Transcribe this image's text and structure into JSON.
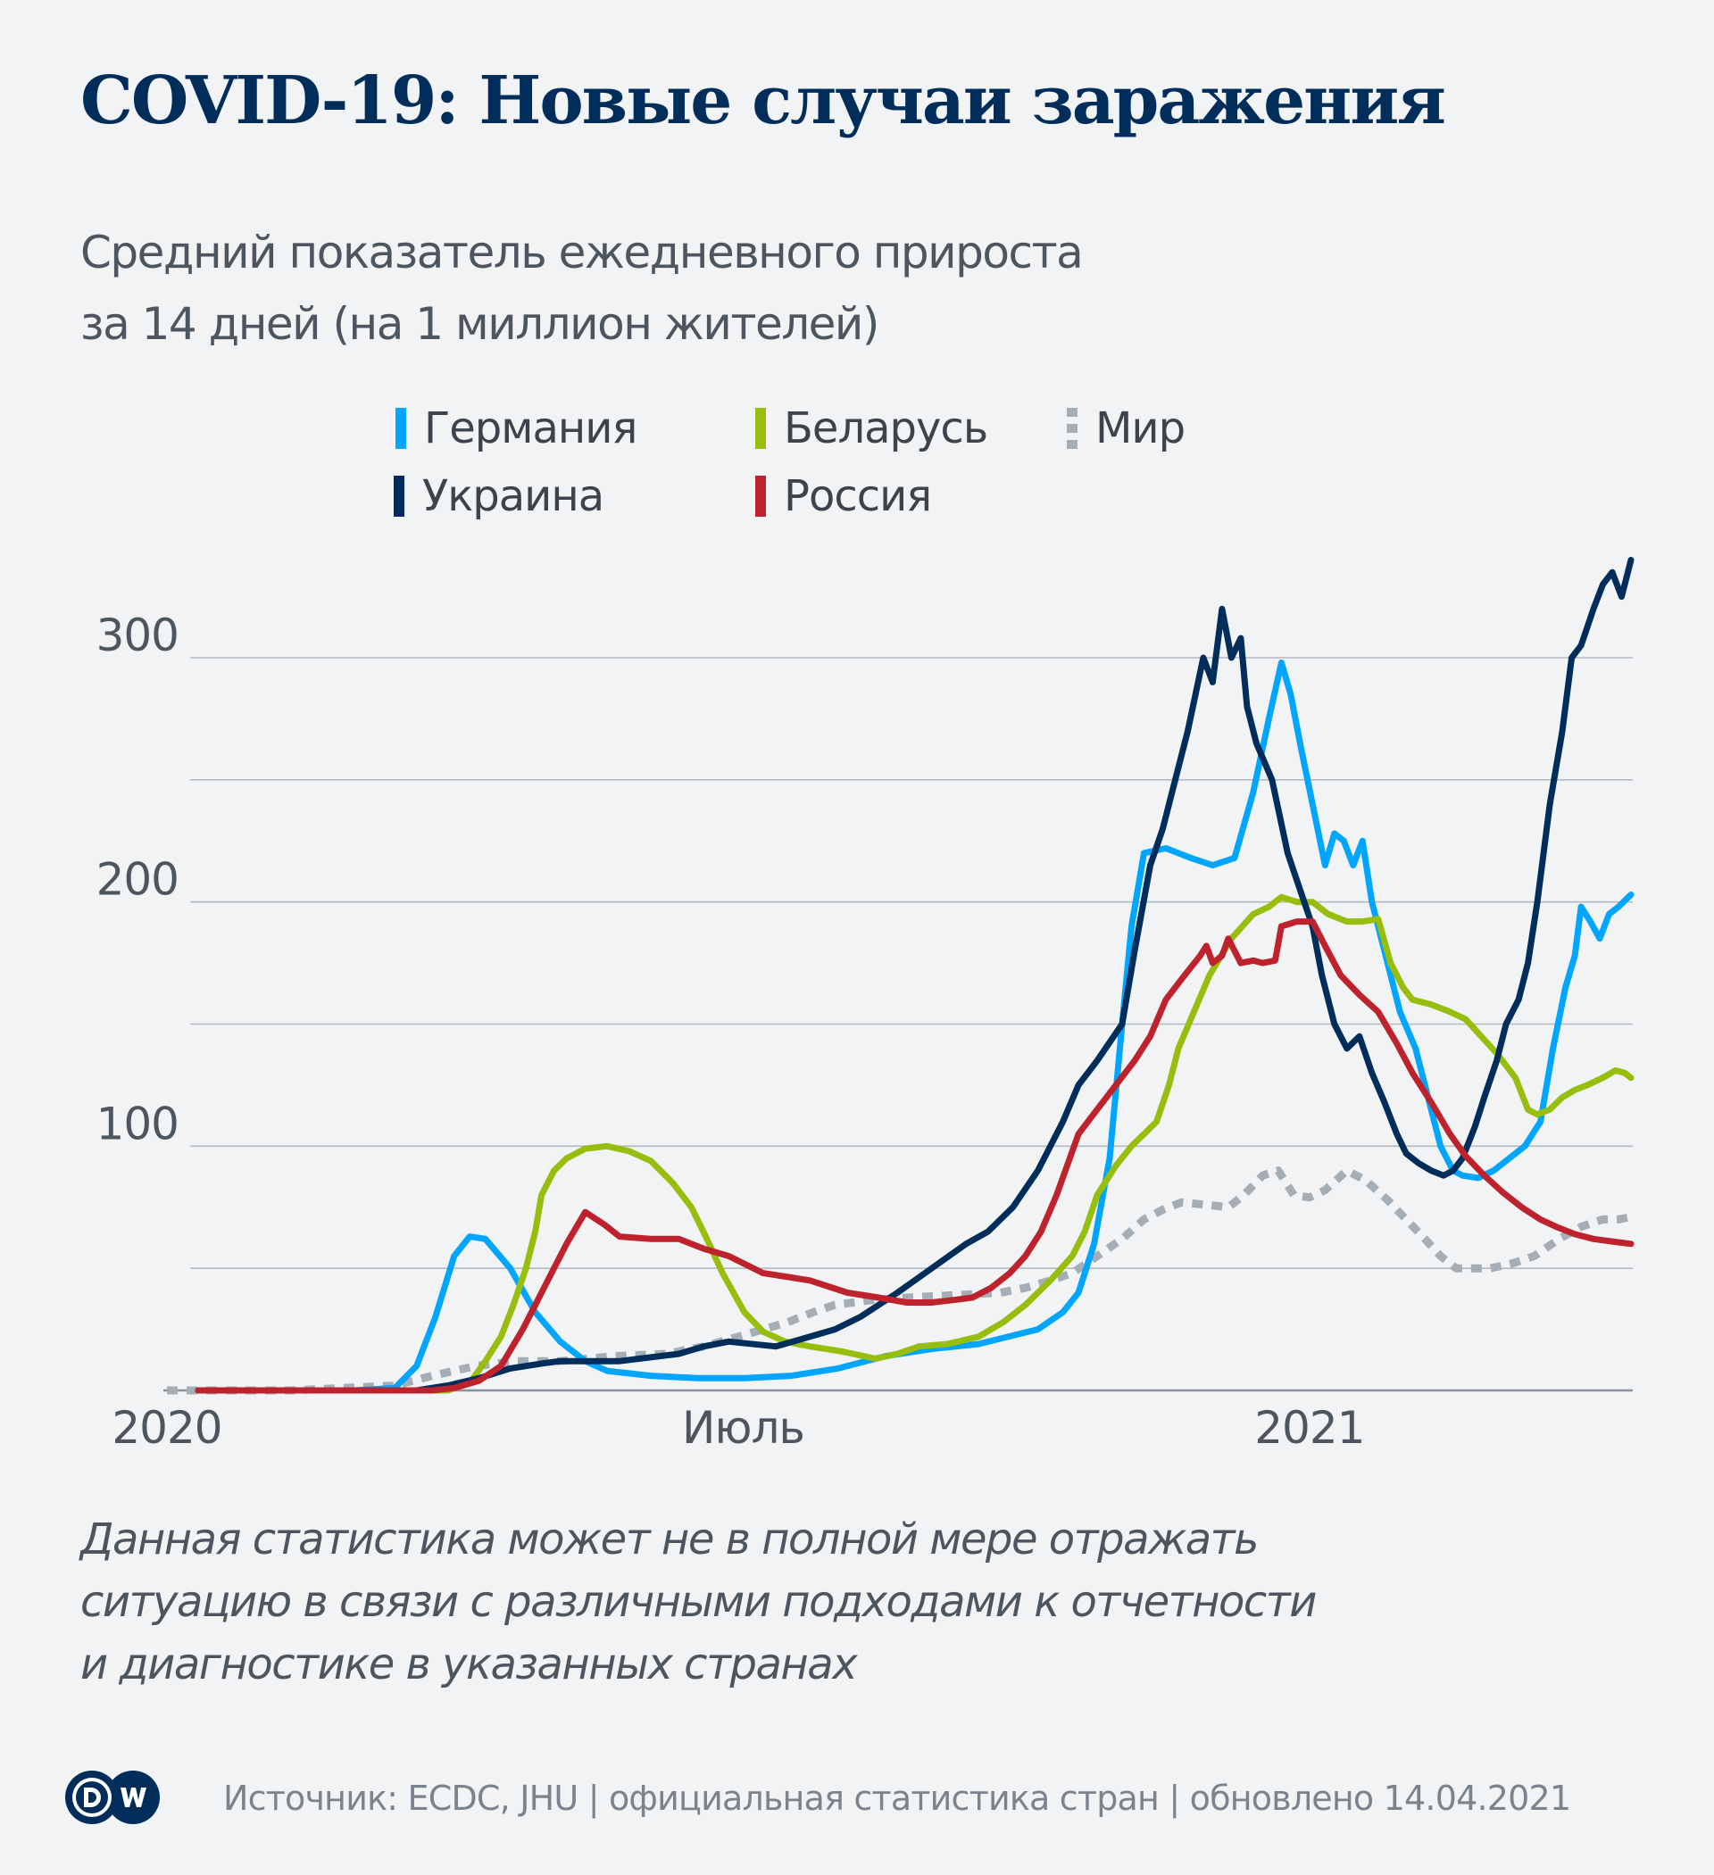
{
  "header": {
    "title": "COVID-19: Новые случаи заражения",
    "subtitle_line1": "Средний показатель ежедневного прироста",
    "subtitle_line2": "за 14 дней (на 1 миллион жителей)"
  },
  "legend": [
    {
      "label": "Германия",
      "color": "#00a5ff",
      "style": "solid"
    },
    {
      "label": "Беларусь",
      "color": "#97be0d",
      "style": "solid"
    },
    {
      "label": "Мир",
      "color": "#a5adb5",
      "style": "dotted"
    },
    {
      "label": "Украина",
      "color": "#002d5a",
      "style": "solid"
    },
    {
      "label": "Россия",
      "color": "#be232d",
      "style": "solid"
    }
  ],
  "chart_data": {
    "type": "line",
    "title": "COVID-19: Новые случаи заражения",
    "ylabel": "Средний показатель ежедневного прироста за 14 дней (на 1 миллион жителей)",
    "xlabel": "",
    "x_unit": "days since 2020-01-01",
    "xlim": [
      0,
      469
    ],
    "ylim": [
      0,
      300
    ],
    "y_ticks": [
      {
        "value": 100,
        "label": "100"
      },
      {
        "value": 200,
        "label": "200"
      },
      {
        "value": 300,
        "label": "300"
      }
    ],
    "y_gridlines": [
      0,
      50,
      100,
      150,
      200,
      250,
      300
    ],
    "x_ticks": [
      {
        "value": 0,
        "label": "2020"
      },
      {
        "value": 182,
        "label": "Июль"
      },
      {
        "value": 366,
        "label": "2021"
      }
    ],
    "grid": true,
    "legend_position": "top",
    "series": [
      {
        "name": "Германия",
        "color": "#00a5ff",
        "dash": false,
        "x": [
          10,
          60,
          73,
          80,
          86,
          92,
          97,
          102,
          110,
          118,
          126,
          134,
          141,
          155,
          170,
          185,
          200,
          215,
          230,
          245,
          260,
          279,
          287,
          292,
          297,
          302,
          306,
          309,
          313,
          320,
          328,
          335,
          342,
          348,
          353,
          357,
          360,
          363,
          367,
          371,
          374,
          377,
          380,
          383,
          386,
          390,
          395,
          400,
          404,
          408,
          412,
          415,
          420,
          425,
          430,
          435,
          440,
          444,
          448,
          451,
          453,
          456,
          459,
          462,
          465,
          469
        ],
        "y": [
          0,
          0,
          1,
          10,
          30,
          55,
          63,
          62,
          50,
          32,
          20,
          12,
          8,
          6,
          5,
          5,
          6,
          9,
          14,
          17,
          19,
          25,
          32,
          40,
          60,
          95,
          150,
          190,
          220,
          222,
          218,
          215,
          218,
          245,
          275,
          298,
          285,
          265,
          240,
          215,
          228,
          225,
          215,
          225,
          200,
          180,
          155,
          140,
          120,
          100,
          90,
          88,
          87,
          90,
          95,
          100,
          110,
          140,
          165,
          178,
          198,
          192,
          185,
          195,
          198,
          203
        ]
      },
      {
        "name": "Украина",
        "color": "#002d5a",
        "dash": false,
        "x": [
          10,
          80,
          90,
          100,
          110,
          120,
          126,
          145,
          164,
          172,
          180,
          195,
          206,
          214,
          222,
          234,
          245,
          256,
          263,
          271,
          279,
          287,
          292,
          298,
          306,
          310,
          315,
          319,
          323,
          327,
          332,
          335,
          338,
          341,
          344,
          346,
          349,
          354,
          359,
          363,
          367,
          370,
          374,
          378,
          382,
          386,
          390,
          394,
          397,
          401,
          405,
          409,
          412,
          415,
          419,
          422,
          426,
          429,
          433,
          436,
          439,
          443,
          447,
          450,
          453,
          457,
          460,
          463,
          466,
          469
        ],
        "y": [
          0,
          0,
          2,
          5,
          9,
          11,
          12,
          12,
          15,
          18,
          20,
          18,
          22,
          25,
          30,
          40,
          50,
          60,
          65,
          75,
          90,
          110,
          125,
          135,
          150,
          180,
          215,
          230,
          250,
          270,
          300,
          290,
          320,
          300,
          308,
          280,
          265,
          250,
          220,
          205,
          190,
          170,
          150,
          140,
          145,
          130,
          118,
          105,
          97,
          93,
          90,
          88,
          90,
          95,
          108,
          120,
          135,
          150,
          160,
          175,
          200,
          240,
          270,
          300,
          305,
          320,
          330,
          335,
          325,
          340
        ]
      },
      {
        "name": "Беларусь",
        "color": "#97be0d",
        "dash": false,
        "x": [
          10,
          90,
          97,
          102,
          107,
          111,
          115,
          118,
          120,
          124,
          128,
          134,
          141,
          148,
          155,
          162,
          168,
          173,
          178,
          185,
          191,
          198,
          206,
          216,
          227,
          234,
          241,
          250,
          260,
          268,
          275,
          283,
          290,
          294,
          298,
          304,
          309,
          313,
          317,
          321,
          324,
          329,
          334,
          341,
          348,
          353,
          357,
          362,
          367,
          372,
          378,
          383,
          388,
          392,
          396,
          399,
          405,
          411,
          416,
          421,
          426,
          432,
          436,
          439,
          443,
          447,
          451,
          455,
          460,
          464,
          467,
          469
        ],
        "y": [
          0,
          0,
          3,
          12,
          22,
          35,
          50,
          65,
          80,
          90,
          95,
          99,
          100,
          98,
          94,
          85,
          75,
          62,
          48,
          32,
          24,
          20,
          18,
          16,
          13,
          15,
          18,
          19,
          22,
          28,
          35,
          45,
          55,
          65,
          80,
          92,
          100,
          105,
          110,
          125,
          140,
          155,
          170,
          185,
          195,
          198,
          202,
          200,
          200,
          195,
          192,
          192,
          193,
          175,
          165,
          160,
          158,
          155,
          152,
          145,
          138,
          128,
          115,
          113,
          115,
          120,
          123,
          125,
          128,
          131,
          130,
          128
        ]
      },
      {
        "name": "Россия",
        "color": "#be232d",
        "dash": false,
        "x": [
          10,
          85,
          92,
          100,
          107,
          114,
          122,
          128,
          134,
          140,
          145,
          155,
          164,
          172,
          180,
          191,
          206,
          218,
          228,
          237,
          245,
          252,
          258,
          264,
          270,
          275,
          280,
          285,
          292,
          298,
          304,
          310,
          315,
          320,
          326,
          331,
          333,
          335,
          338,
          340,
          344,
          348,
          351,
          355,
          357,
          362,
          367,
          371,
          376,
          382,
          388,
          394,
          399,
          405,
          411,
          416,
          422,
          428,
          434,
          440,
          445,
          451,
          457,
          463,
          469
        ],
        "y": [
          0,
          0,
          1,
          4,
          10,
          25,
          45,
          60,
          73,
          68,
          63,
          62,
          62,
          58,
          55,
          48,
          45,
          40,
          38,
          36,
          36,
          37,
          38,
          42,
          48,
          55,
          65,
          80,
          105,
          115,
          125,
          135,
          145,
          160,
          170,
          178,
          182,
          175,
          178,
          185,
          175,
          176,
          175,
          176,
          190,
          192,
          192,
          182,
          170,
          162,
          155,
          142,
          130,
          118,
          105,
          96,
          88,
          81,
          75,
          70,
          67,
          64,
          62,
          61,
          60
        ]
      },
      {
        "name": "Мир",
        "color": "#a5adb5",
        "dash": true,
        "x": [
          0,
          40,
          73,
          85,
          99,
          112,
          126,
          143,
          160,
          172,
          183,
          191,
          199,
          207,
          214,
          226,
          237,
          252,
          267,
          275,
          283,
          290,
          298,
          306,
          313,
          319,
          325,
          333,
          340,
          345,
          351,
          356,
          361,
          366,
          371,
          378,
          384,
          391,
          397,
          403,
          408,
          413,
          419,
          424,
          431,
          438,
          446,
          453,
          460,
          465,
          469
        ],
        "y": [
          0,
          0,
          2,
          6,
          10,
          12,
          12,
          14,
          15,
          18,
          22,
          25,
          28,
          32,
          35,
          37,
          38,
          39,
          40,
          42,
          45,
          48,
          55,
          62,
          70,
          74,
          77,
          76,
          75,
          80,
          88,
          90,
          80,
          79,
          82,
          90,
          86,
          78,
          70,
          62,
          55,
          50,
          50,
          50,
          52,
          55,
          62,
          67,
          70,
          70,
          71
        ]
      }
    ]
  },
  "footnote": {
    "line1": "Данная статистика может не в полной мере отражать",
    "line2": "ситуацию в связи с различными подходами к отчетности",
    "line3": "и диагностике в указанных странах"
  },
  "footer": {
    "logo_text": "DW",
    "source": "Источник: ECDC, JHU | официальная статистика стран | обновлено 14.04.2021"
  }
}
